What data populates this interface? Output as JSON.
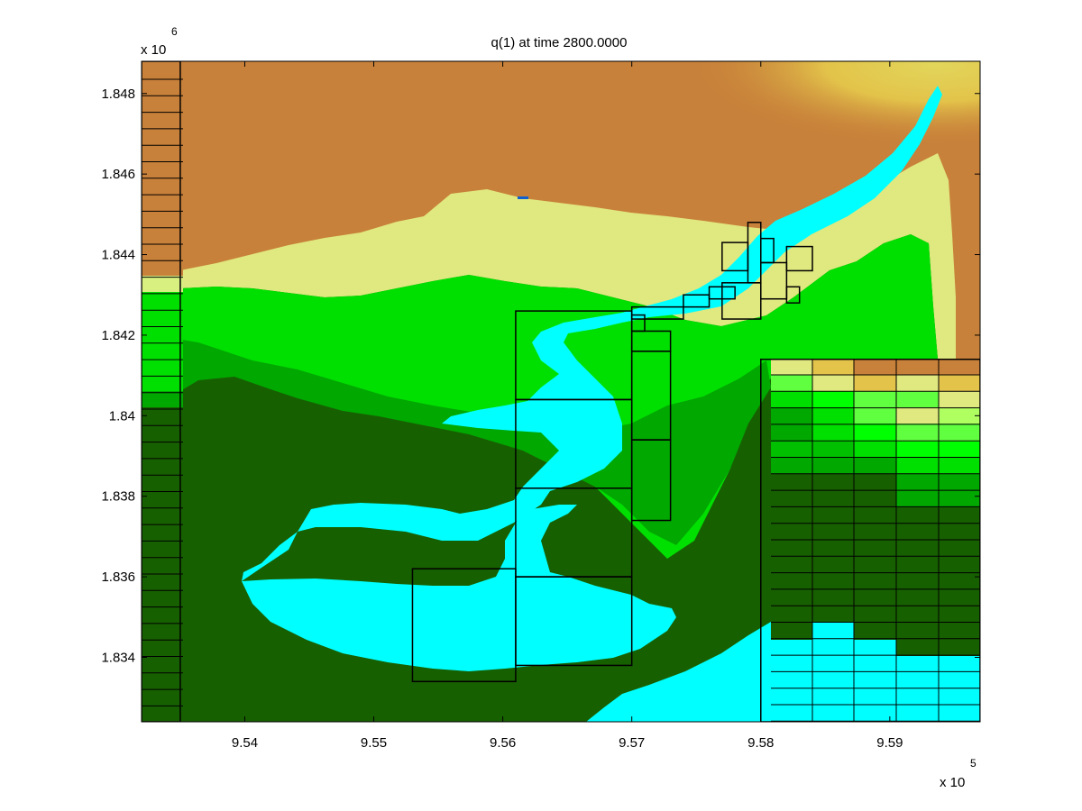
{
  "chart_data": {
    "type": "heatmap",
    "title": "q(1) at time 2800.0000",
    "xlabel": "",
    "ylabel": "",
    "x_exponent": {
      "base": "x 10",
      "power": "5"
    },
    "y_exponent": {
      "base": "x 10",
      "power": "6"
    },
    "xlim": [
      953.2,
      959.7
    ],
    "ylim": [
      1832.4,
      1848.8
    ],
    "x_ticks": [
      {
        "value": 954,
        "label": "9.54"
      },
      {
        "value": 955,
        "label": "9.55"
      },
      {
        "value": 956,
        "label": "9.56"
      },
      {
        "value": 957,
        "label": "9.57"
      },
      {
        "value": 958,
        "label": "9.58"
      },
      {
        "value": 959,
        "label": "9.59"
      }
    ],
    "y_ticks": [
      {
        "value": 1834,
        "label": "1.834"
      },
      {
        "value": 1836,
        "label": "1.836"
      },
      {
        "value": 1838,
        "label": "1.838"
      },
      {
        "value": 1840,
        "label": "1.84"
      },
      {
        "value": 1842,
        "label": "1.842"
      },
      {
        "value": 1844,
        "label": "1.844"
      },
      {
        "value": 1846,
        "label": "1.846"
      },
      {
        "value": 1848,
        "label": "1.848"
      }
    ],
    "colors": {
      "water": "#00ffff",
      "land_high": "#c8813a",
      "land_yellow": "#e6c840",
      "land_pale": "#d8f080",
      "land_green": "#00ee00",
      "land_mid": "#00a000",
      "land_dark": "#176000",
      "grid_line": "#000000"
    },
    "amr_patches": [
      [
        953.2,
        953.5,
        1832.4,
        1848.8
      ],
      [
        958.0,
        959.7,
        1832.4,
        1841.4
      ],
      [
        955.3,
        956.1,
        1833.4,
        1836.2
      ],
      [
        956.1,
        957.0,
        1833.8,
        1836.0
      ],
      [
        956.1,
        957.0,
        1836.0,
        1838.2
      ],
      [
        956.1,
        957.0,
        1838.2,
        1840.4
      ],
      [
        956.1,
        957.0,
        1840.4,
        1842.6
      ],
      [
        957.0,
        957.3,
        1837.4,
        1839.4
      ],
      [
        957.0,
        957.3,
        1839.4,
        1841.6
      ],
      [
        957.0,
        957.3,
        1841.6,
        1842.1
      ],
      [
        957.0,
        957.1,
        1842.1,
        1842.5
      ],
      [
        957.0,
        957.4,
        1842.4,
        1842.7
      ],
      [
        957.4,
        957.6,
        1842.7,
        1843.0
      ],
      [
        957.6,
        957.8,
        1842.9,
        1843.2
      ],
      [
        957.7,
        958.0,
        1842.4,
        1843.3
      ],
      [
        957.7,
        957.9,
        1843.6,
        1844.3
      ],
      [
        957.9,
        958.0,
        1843.3,
        1844.8
      ],
      [
        958.0,
        958.1,
        1843.8,
        1844.4
      ],
      [
        958.0,
        958.2,
        1842.9,
        1843.8
      ],
      [
        958.2,
        958.4,
        1843.6,
        1844.2
      ],
      [
        958.2,
        958.3,
        1842.8,
        1843.2
      ]
    ]
  }
}
